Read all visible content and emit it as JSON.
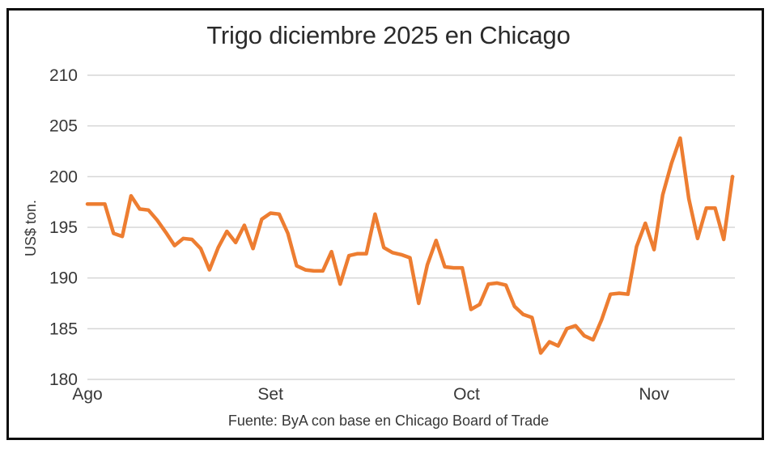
{
  "chart_data": {
    "type": "line",
    "title": "Trigo diciembre 2025 en Chicago",
    "ylabel": "US$ ton.",
    "xlabel": "",
    "source_caption": "Fuente: ByA con base en Chicago Board of Trade",
    "ylim": [
      180,
      210
    ],
    "yticks": [
      210,
      205,
      200,
      195,
      190,
      185,
      180
    ],
    "grid": "horizontal-only",
    "legend_position": "none",
    "line_color": "#ED7D31",
    "gridline_color": "#D6D6D6",
    "x_tick_labels": [
      {
        "label": "Ago",
        "day": 0
      },
      {
        "label": "Set",
        "day": 21
      },
      {
        "label": "Oct",
        "day": 43.5
      },
      {
        "label": "Nov",
        "day": 65
      }
    ],
    "series": [
      {
        "name": "Trigo diciembre 2025 (Chicago)",
        "unit": "US$ por tonelada",
        "values": [
          197.3,
          197.3,
          197.3,
          194.4,
          194.1,
          198.1,
          196.8,
          196.7,
          195.7,
          194.5,
          193.2,
          193.9,
          193.8,
          192.9,
          190.8,
          193.0,
          194.6,
          193.5,
          195.2,
          192.9,
          195.8,
          196.4,
          196.3,
          194.4,
          191.2,
          190.8,
          190.7,
          190.7,
          192.6,
          189.4,
          192.2,
          192.4,
          192.4,
          196.3,
          193.0,
          192.5,
          192.3,
          192.0,
          187.5,
          191.3,
          193.7,
          191.1,
          191.0,
          191.0,
          186.9,
          187.4,
          189.4,
          189.5,
          189.3,
          187.2,
          186.4,
          186.1,
          182.6,
          183.7,
          183.3,
          185.0,
          185.3,
          184.3,
          183.9,
          185.9,
          188.4,
          188.5,
          188.4,
          193.1,
          195.4,
          192.8,
          198.2,
          201.3,
          203.8,
          197.8,
          193.9,
          196.9,
          196.9,
          193.8,
          200.0
        ]
      }
    ]
  }
}
